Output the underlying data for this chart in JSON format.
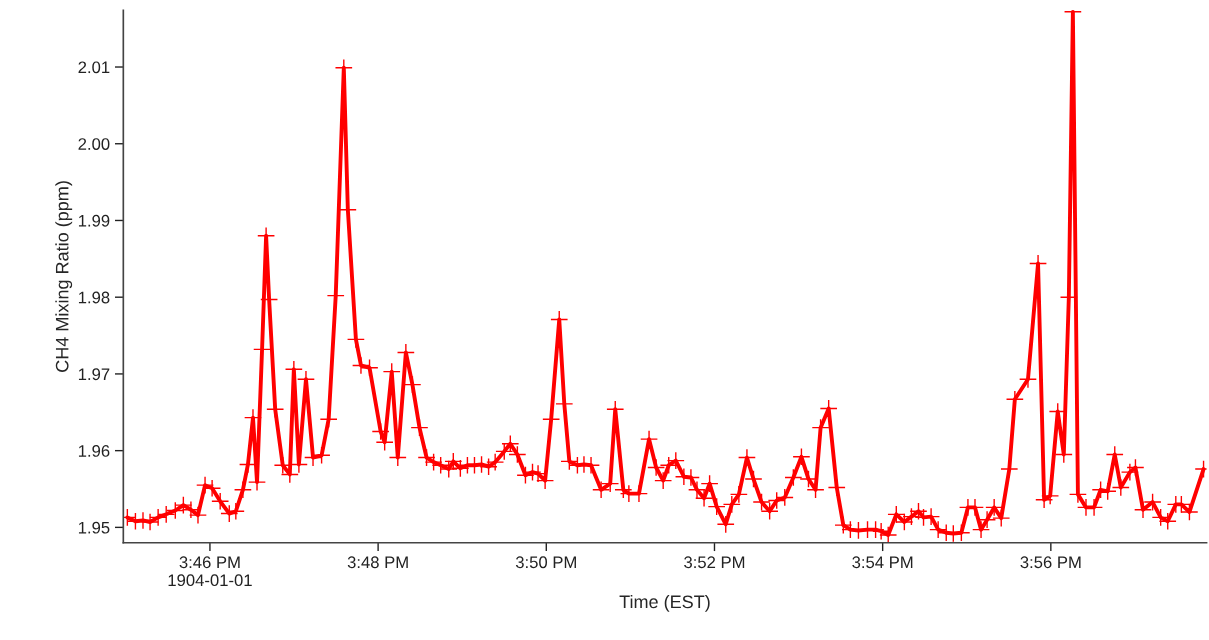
{
  "chart_data": {
    "type": "line",
    "xlabel": "Time (EST)",
    "ylabel": "CH4 Mixing Ratio (ppm)",
    "xlim": [
      15.7495,
      15.9642
    ],
    "ylim": [
      1.948,
      2.0174
    ],
    "xticks": [
      {
        "value": 15.766667,
        "label": "3:46 PM\n1904-01-01"
      },
      {
        "value": 15.8,
        "label": "3:48 PM"
      },
      {
        "value": 15.833333,
        "label": "3:50 PM"
      },
      {
        "value": 15.866667,
        "label": "3:52 PM"
      },
      {
        "value": 15.9,
        "label": "3:54 PM"
      },
      {
        "value": 15.933333,
        "label": "3:56 PM"
      }
    ],
    "yticks": [
      1.95,
      1.96,
      1.97,
      1.98,
      1.99,
      {
        "value": 2.0,
        "label": "2.00"
      },
      2.01
    ],
    "grid": false,
    "marker": "cross",
    "line_style": "solid",
    "series": [
      {
        "color": "#ff0000",
        "x": [
          15.7503,
          15.7519,
          15.7534,
          15.7548,
          15.7564,
          15.758,
          15.7598,
          15.7614,
          15.7629,
          15.7643,
          15.7657,
          15.7671,
          15.7687,
          15.7705,
          15.7718,
          15.7732,
          15.7742,
          15.7752,
          15.776,
          15.777,
          15.7778,
          15.7784,
          15.7796,
          15.7811,
          15.7825,
          15.7833,
          15.7843,
          15.7857,
          15.7871,
          15.7888,
          15.7902,
          15.7916,
          15.7932,
          15.794,
          15.7956,
          15.7966,
          15.7983,
          15.8005,
          15.8013,
          15.8027,
          15.8039,
          15.8055,
          15.8068,
          15.8082,
          15.8096,
          15.811,
          15.8124,
          15.814,
          15.8149,
          15.8163,
          15.8177,
          15.8191,
          15.8205,
          15.8219,
          15.8232,
          15.825,
          15.8262,
          15.8276,
          15.8292,
          15.8306,
          15.8317,
          15.8331,
          15.8343,
          15.8359,
          15.8369,
          15.8379,
          15.8395,
          15.8408,
          15.8422,
          15.8442,
          15.846,
          15.847,
          15.8486,
          15.8497,
          15.8517,
          15.8537,
          15.8551,
          15.8565,
          15.8576,
          15.859,
          15.8606,
          15.862,
          15.8632,
          15.8646,
          15.8657,
          15.8671,
          15.8689,
          15.8701,
          15.8715,
          15.8731,
          15.8744,
          15.876,
          15.8776,
          15.879,
          15.8806,
          15.8823,
          15.8839,
          15.8853,
          15.8867,
          15.8877,
          15.8893,
          15.8909,
          15.8922,
          15.8936,
          15.8952,
          15.897,
          15.8986,
          15.8997,
          15.9011,
          15.9027,
          15.9043,
          15.9057,
          15.9071,
          15.9081,
          15.9096,
          15.911,
          15.9126,
          15.914,
          15.9156,
          15.9169,
          15.9183,
          15.9195,
          15.9207,
          15.9221,
          15.9235,
          15.9251,
          15.9262,
          15.9288,
          15.9308,
          15.932,
          15.9332,
          15.9347,
          15.9359,
          15.9369,
          15.9377,
          15.9387,
          15.9403,
          15.9419,
          15.9432,
          15.9446,
          15.946,
          15.9472,
          15.949,
          15.9501,
          15.9516,
          15.9535,
          15.9551,
          15.9565,
          15.9581,
          15.9592,
          15.9608,
          15.9636
        ],
        "values": [
          1.9513,
          1.9508,
          1.9509,
          1.9507,
          1.9513,
          1.9517,
          1.9522,
          1.9529,
          1.9523,
          1.9516,
          1.9555,
          1.9551,
          1.9534,
          1.9518,
          1.9521,
          1.9549,
          1.9582,
          1.9643,
          1.9559,
          1.9732,
          1.988,
          1.9797,
          1.9654,
          1.9581,
          1.9569,
          1.9706,
          1.9582,
          1.9693,
          1.9591,
          1.9594,
          1.9641,
          1.9802,
          2.0099,
          1.9914,
          1.9745,
          1.9711,
          1.9708,
          1.9625,
          1.9611,
          1.9703,
          1.9591,
          1.9728,
          1.9686,
          1.963,
          1.9591,
          1.9585,
          1.9581,
          1.9576,
          1.9586,
          1.9577,
          1.9581,
          1.9581,
          1.9582,
          1.9579,
          1.9585,
          1.9599,
          1.9609,
          1.9595,
          1.9568,
          1.9572,
          1.957,
          1.9561,
          1.9641,
          1.9771,
          1.9661,
          1.9586,
          1.9581,
          1.9582,
          1.9581,
          1.9549,
          1.9557,
          1.9654,
          1.9549,
          1.9544,
          1.9544,
          1.9615,
          1.9578,
          1.9561,
          1.9581,
          1.9587,
          1.9566,
          1.9565,
          1.9549,
          1.9538,
          1.9557,
          1.9527,
          1.9504,
          1.953,
          1.9543,
          1.9591,
          1.9563,
          1.9533,
          1.9521,
          1.9535,
          1.9539,
          1.9565,
          1.9592,
          1.9563,
          1.9549,
          1.963,
          1.9655,
          1.9552,
          1.9503,
          1.9497,
          1.9496,
          1.9497,
          1.9497,
          1.9495,
          1.949,
          1.9517,
          1.9507,
          1.9514,
          1.9521,
          1.9513,
          1.9514,
          1.9497,
          1.9493,
          1.9492,
          1.9493,
          1.9526,
          1.9526,
          1.9497,
          1.951,
          1.9526,
          1.9512,
          1.9576,
          1.9667,
          1.9693,
          1.9844,
          1.9536,
          1.9541,
          1.9651,
          1.9595,
          1.98,
          2.0172,
          1.9543,
          1.9526,
          1.9526,
          1.9549,
          1.9547,
          1.9595,
          1.9552,
          1.9572,
          1.9578,
          1.9523,
          1.9533,
          1.9513,
          1.9508,
          1.953,
          1.953,
          1.952,
          1.9576
        ]
      }
    ]
  }
}
